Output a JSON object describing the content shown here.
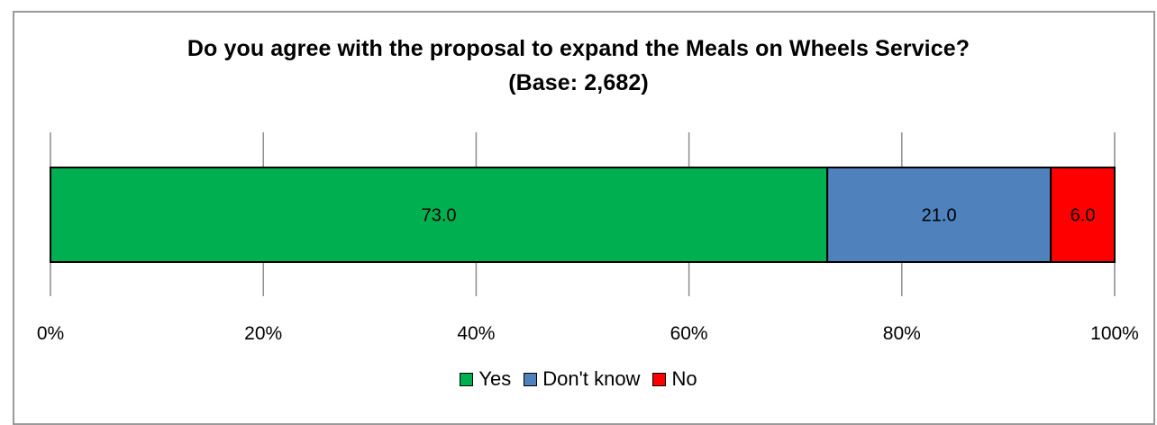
{
  "chart_data": {
    "type": "bar",
    "orientation": "horizontal",
    "stacked": true,
    "title": "Do you agree with the proposal to expand the Meals on Wheels Service?",
    "subtitle": "(Base: 2,682)",
    "xlabel": "",
    "ylabel": "",
    "xlim": [
      0,
      100
    ],
    "x_ticks": [
      "0%",
      "20%",
      "40%",
      "60%",
      "80%",
      "100%"
    ],
    "grid": "vertical",
    "legend_position": "bottom",
    "series": [
      {
        "name": "Yes",
        "value": 73.0,
        "label": "73.0",
        "color": "#00b050",
        "label_color": "#000000"
      },
      {
        "name": "Don't know",
        "value": 21.0,
        "label": "21.0",
        "color": "#4f81bd",
        "label_color": "#000000"
      },
      {
        "name": "No",
        "value": 6.0,
        "label": "6.0",
        "color": "#ff0000",
        "label_color": "#000000"
      }
    ]
  }
}
